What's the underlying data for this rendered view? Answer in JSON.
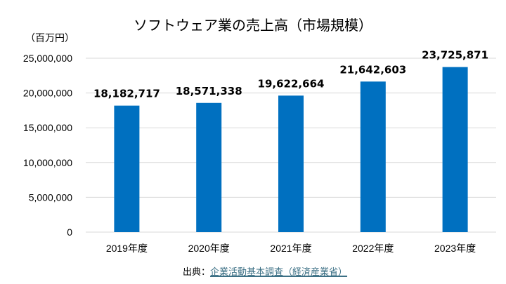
{
  "chart_data": {
    "type": "bar",
    "title": "ソフトウェア業の売上高（市場規模）",
    "ylabel": "（百万円）",
    "xlabel": "",
    "categories": [
      "2019年度",
      "2020年度",
      "2021年度",
      "2022年度",
      "2023年度"
    ],
    "values": [
      18182717,
      18571338,
      19622664,
      21642603,
      23725871
    ],
    "data_labels": [
      "18,182,717",
      "18,571,338",
      "19,622,664",
      "21,642,603",
      "23,725,871"
    ],
    "ylim": [
      0,
      25000000
    ],
    "yticks": [
      0,
      5000000,
      10000000,
      15000000,
      20000000,
      25000000
    ],
    "ytick_labels": [
      "0",
      "5,000,000",
      "10,000,000",
      "15,000,000",
      "20,000,000",
      "25,000,000"
    ],
    "grid": true,
    "legend": "none",
    "bar_color": "#0070c0"
  },
  "source": {
    "prefix": "出典：",
    "link_text": "企業活動基本調査（経済産業省）"
  }
}
